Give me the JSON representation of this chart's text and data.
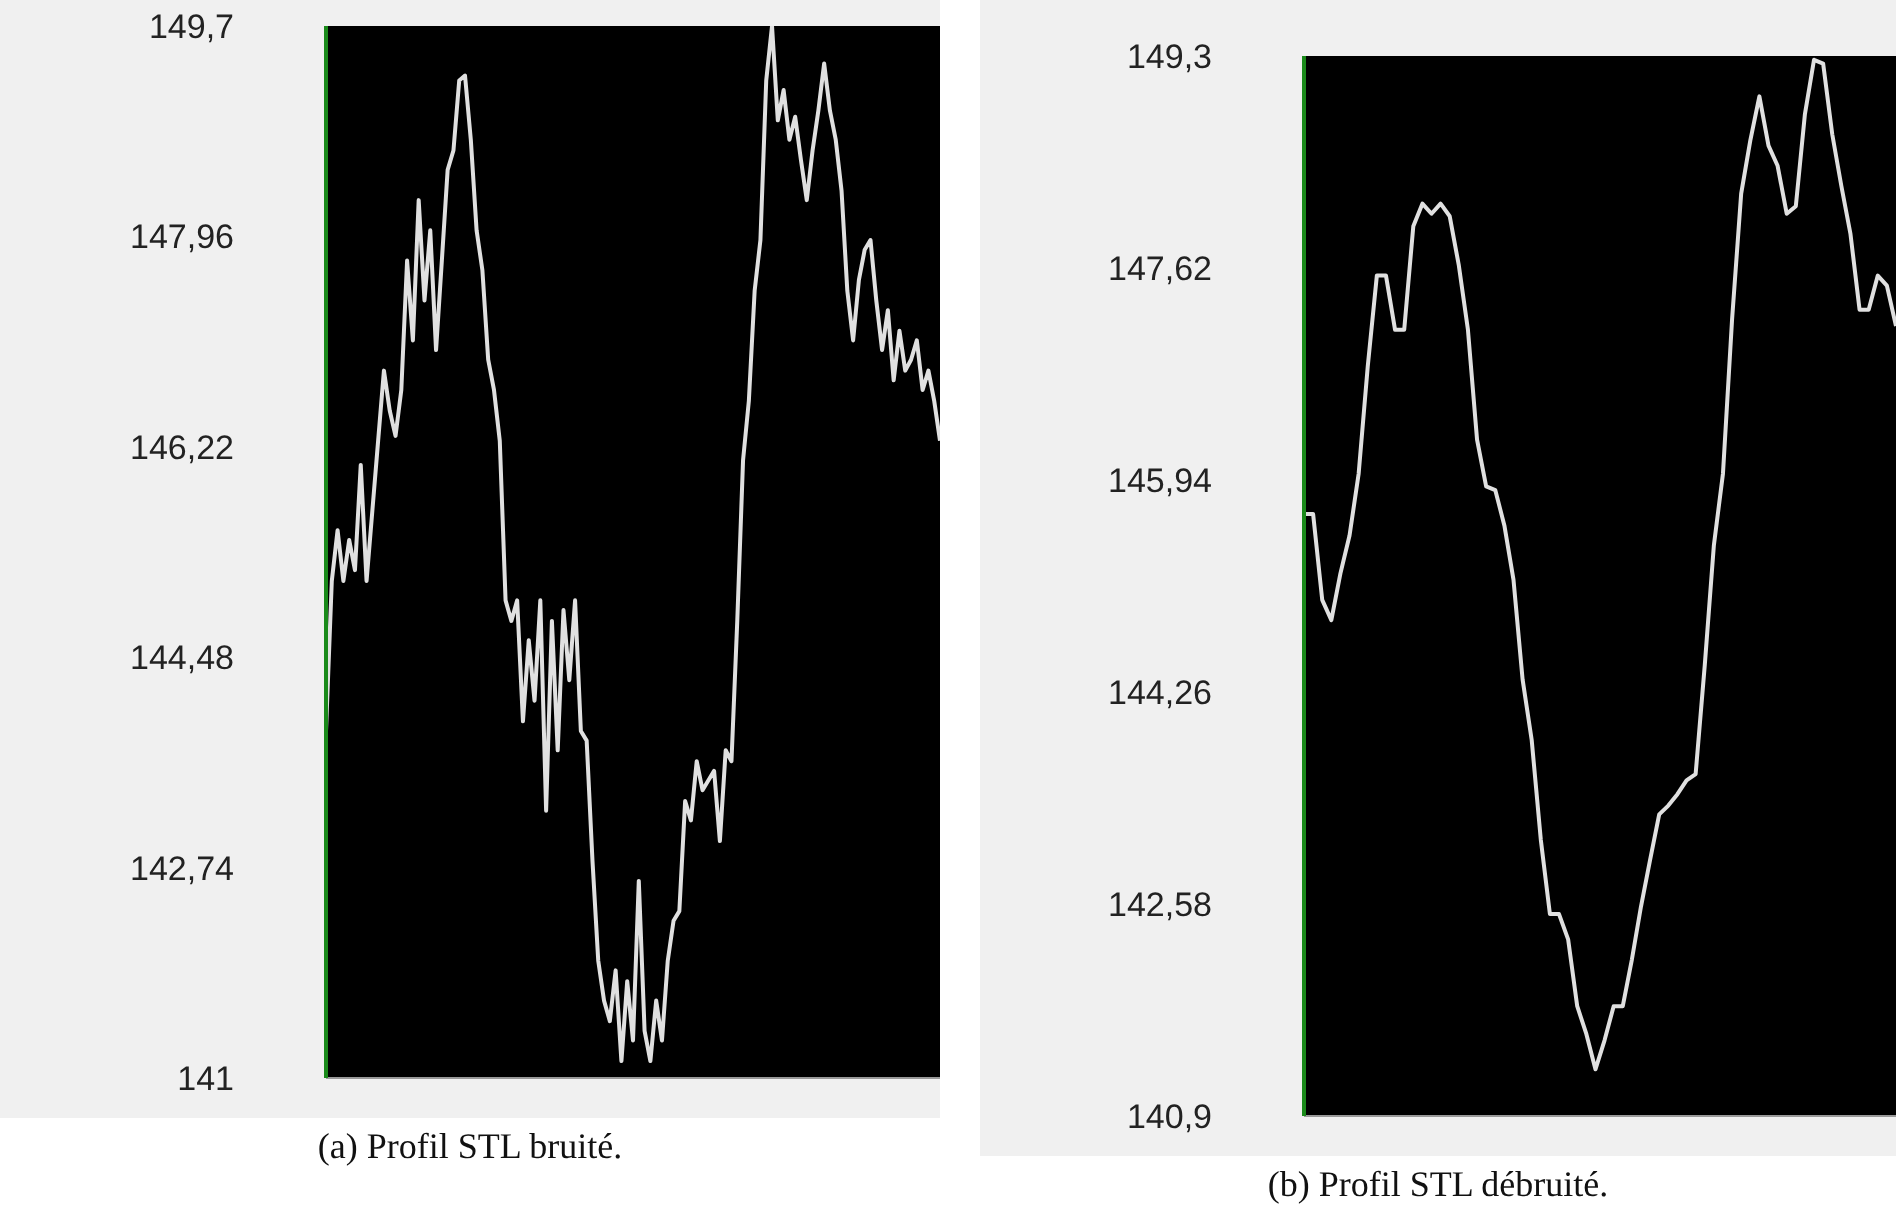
{
  "chart_data": [
    {
      "type": "line",
      "categories": [
        null,
        null,
        null,
        null,
        null,
        null,
        null,
        null,
        null,
        null,
        null,
        null,
        null,
        null,
        null,
        null,
        null,
        null,
        null,
        null,
        null,
        null,
        null,
        null,
        null,
        null,
        null,
        null,
        null,
        null,
        null,
        null,
        null,
        null,
        null,
        null,
        null,
        null,
        null,
        null,
        null,
        null,
        null,
        null,
        null,
        null,
        null,
        null,
        null,
        null,
        null,
        null,
        null,
        null,
        null,
        null,
        null,
        null,
        null,
        null,
        null,
        null,
        null,
        null,
        null,
        null,
        null,
        null,
        null,
        null,
        null,
        null,
        null,
        null,
        null,
        null,
        null,
        null,
        null,
        null,
        null,
        null,
        null,
        null,
        null,
        null,
        null,
        null,
        null,
        null,
        null,
        null,
        null,
        null,
        null,
        null,
        null,
        null,
        null,
        null,
        null,
        null,
        null,
        null,
        null,
        null,
        null
      ],
      "series": [
        {
          "color": "#e0e0e0",
          "values": [
            143.87,
            145.11,
            145.53,
            145.11,
            145.45,
            145.2,
            146.07,
            145.11,
            145.69,
            146.27,
            146.85,
            146.52,
            146.31,
            146.69,
            147.76,
            147.1,
            148.26,
            147.43,
            148.01,
            147.02,
            147.76,
            148.51,
            148.67,
            149.25,
            149.29,
            148.76,
            148.01,
            147.68,
            146.94,
            146.69,
            146.27,
            144.95,
            144.78,
            144.95,
            143.95,
            144.62,
            144.12,
            144.95,
            143.21,
            144.78,
            143.71,
            144.87,
            144.29,
            144.95,
            143.87,
            143.79,
            142.8,
            141.97,
            141.64,
            141.47,
            141.89,
            141.14,
            141.8,
            141.31,
            142.63,
            141.39,
            141.14,
            141.64,
            141.31,
            141.97,
            142.3,
            142.38,
            143.29,
            143.13,
            143.62,
            143.38,
            143.46,
            143.54,
            142.96,
            143.71,
            143.62,
            144.78,
            146.11,
            146.6,
            147.51,
            147.93,
            149.25,
            149.7,
            148.92,
            149.17,
            148.76,
            148.95,
            148.59,
            148.26,
            148.67,
            149.0,
            149.39,
            149.0,
            148.76,
            148.34,
            147.51,
            147.1,
            147.6,
            147.85,
            147.93,
            147.43,
            147.02,
            147.35,
            146.77,
            147.18,
            146.85,
            146.94,
            147.1,
            146.69,
            146.85,
            146.6,
            146.27
          ]
        }
      ],
      "ylim": [
        141,
        149.7
      ],
      "yticks": [
        {
          "value": 141,
          "label": "141"
        },
        {
          "value": 142.74,
          "label": "142,74"
        },
        {
          "value": 144.48,
          "label": "144,48"
        },
        {
          "value": 146.22,
          "label": "146,22"
        },
        {
          "value": 147.96,
          "label": "147,96"
        },
        {
          "value": 149.7,
          "label": "149,7"
        }
      ],
      "annotations": [
        "(a) Profil STL bruité."
      ]
    },
    {
      "type": "line",
      "categories": [
        null,
        null,
        null,
        null,
        null,
        null,
        null,
        null,
        null,
        null,
        null,
        null,
        null,
        null,
        null,
        null,
        null,
        null,
        null,
        null,
        null,
        null,
        null,
        null,
        null,
        null,
        null,
        null,
        null,
        null,
        null,
        null,
        null,
        null,
        null,
        null,
        null,
        null,
        null,
        null,
        null,
        null,
        null,
        null,
        null,
        null,
        null,
        null,
        null,
        null,
        null,
        null,
        null,
        null,
        null,
        null,
        null,
        null,
        null,
        null,
        null,
        null,
        null,
        null,
        null,
        null
      ],
      "series": [
        {
          "color": "#e0e0e0",
          "values": [
            145.67,
            145.67,
            144.99,
            144.83,
            145.2,
            145.5,
            145.99,
            146.84,
            147.56,
            147.56,
            147.13,
            147.13,
            147.95,
            148.13,
            148.05,
            148.13,
            148.03,
            147.64,
            147.13,
            146.26,
            145.89,
            145.86,
            145.58,
            145.15,
            144.36,
            143.88,
            143.09,
            142.5,
            142.5,
            142.3,
            141.77,
            141.55,
            141.27,
            141.5,
            141.77,
            141.77,
            142.14,
            142.56,
            142.93,
            143.29,
            143.36,
            143.45,
            143.56,
            143.61,
            144.47,
            145.42,
            145.99,
            147.21,
            148.21,
            148.63,
            148.98,
            148.59,
            148.43,
            148.05,
            148.11,
            148.84,
            149.27,
            149.24,
            148.68,
            148.27,
            147.89,
            147.29,
            147.29,
            147.56,
            147.48,
            147.16
          ]
        }
      ],
      "ylim": [
        140.9,
        149.3
      ],
      "yticks": [
        {
          "value": 140.9,
          "label": "140,9"
        },
        {
          "value": 142.58,
          "label": "142,58"
        },
        {
          "value": 144.26,
          "label": "144,26"
        },
        {
          "value": 145.94,
          "label": "145,94"
        },
        {
          "value": 147.62,
          "label": "147,62"
        },
        {
          "value": 149.3,
          "label": "149,3"
        }
      ],
      "annotations": [
        "(b) Profil STL débruité."
      ]
    }
  ]
}
